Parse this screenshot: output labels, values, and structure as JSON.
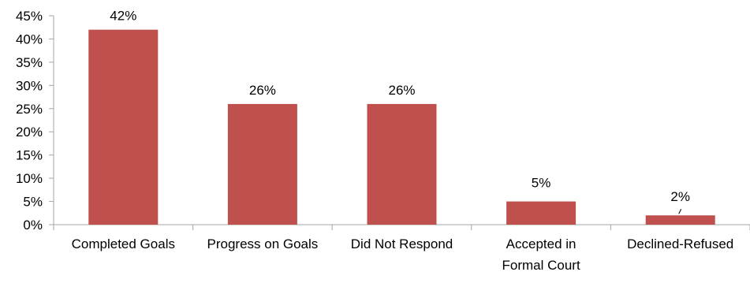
{
  "chart_data": {
    "type": "bar",
    "categories": [
      [
        "Completed Goals"
      ],
      [
        "Progress on Goals"
      ],
      [
        "Did Not Respond"
      ],
      [
        "Accepted in",
        "Formal Court"
      ],
      [
        "Declined-Refused"
      ]
    ],
    "values": [
      42,
      26,
      26,
      5,
      2
    ],
    "data_labels": [
      "42%",
      "26%",
      "26%",
      "5%",
      "2%"
    ],
    "y_ticks": [
      "0%",
      "5%",
      "10%",
      "15%",
      "20%",
      "25%",
      "30%",
      "35%",
      "40%",
      "45%"
    ],
    "ylim": [
      0,
      45
    ],
    "grid": false,
    "legend": "none",
    "title": "",
    "xlabel": "",
    "ylabel": "",
    "bar_color": "#c0504d",
    "axis_color": "#a6a6a6"
  }
}
